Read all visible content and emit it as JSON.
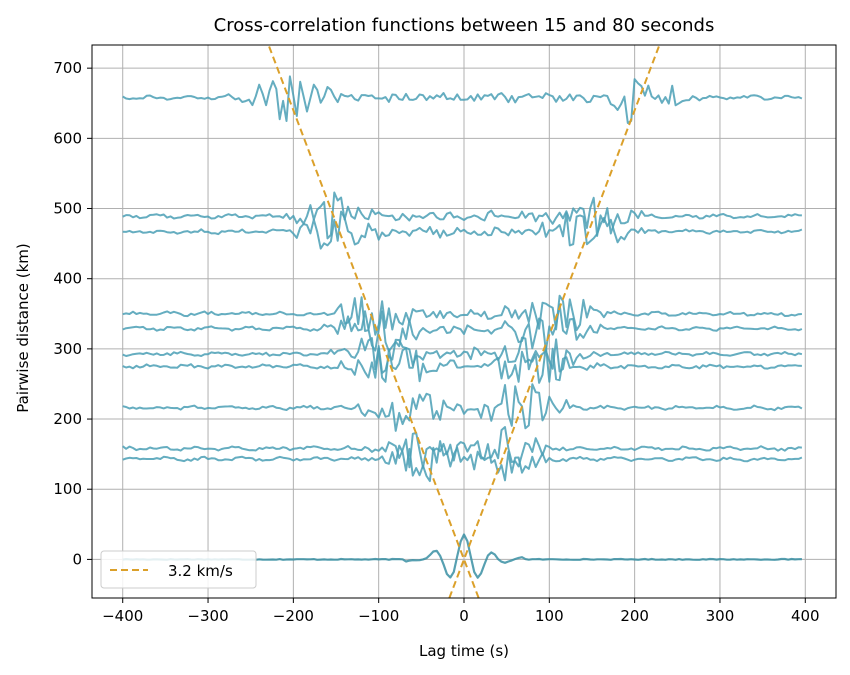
{
  "chart_data": {
    "type": "line",
    "title": "Cross-correlation functions between 15 and 80 seconds",
    "xlabel": "Lag time (s)",
    "ylabel": "Pairwise distance (km)",
    "xlim": [
      -436,
      436
    ],
    "ylim": [
      -55,
      733
    ],
    "xticks": [
      -400,
      -300,
      -200,
      -100,
      0,
      100,
      200,
      300,
      400
    ],
    "yticks": [
      0,
      100,
      200,
      300,
      400,
      500,
      600,
      700
    ],
    "grid": true,
    "legend": {
      "placement": "lower-left",
      "entries": [
        "3.2 km/s"
      ]
    },
    "colors": {
      "trace": "#4a9fb5",
      "velocity_line": "#dba02a",
      "zero_trace": "#3a8fa3"
    },
    "velocity_line": {
      "name": "3.2 km/s",
      "velocity_km_s": 3.2,
      "style": "dashed"
    },
    "traces": [
      {
        "distance_km": 0,
        "lag_range_s": [
          -400,
          396
        ],
        "amplitude": 35,
        "style": "zero"
      },
      {
        "distance_km": 143,
        "lag_range_s": [
          -400,
          396
        ],
        "amplitude": 30
      },
      {
        "distance_km": 158,
        "lag_range_s": [
          -400,
          396
        ],
        "amplitude": 30
      },
      {
        "distance_km": 216,
        "lag_range_s": [
          -400,
          396
        ],
        "amplitude": 38
      },
      {
        "distance_km": 275,
        "lag_range_s": [
          -400,
          396
        ],
        "amplitude": 35
      },
      {
        "distance_km": 293,
        "lag_range_s": [
          -400,
          396
        ],
        "amplitude": 35
      },
      {
        "distance_km": 329,
        "lag_range_s": [
          -400,
          396
        ],
        "amplitude": 38
      },
      {
        "distance_km": 350,
        "lag_range_s": [
          -400,
          396
        ],
        "amplitude": 32
      },
      {
        "distance_km": 467,
        "lag_range_s": [
          -400,
          396
        ],
        "amplitude": 32
      },
      {
        "distance_km": 489,
        "lag_range_s": [
          -400,
          396
        ],
        "amplitude": 32
      },
      {
        "distance_km": 658,
        "lag_range_s": [
          -400,
          396
        ],
        "amplitude": 35
      }
    ]
  }
}
